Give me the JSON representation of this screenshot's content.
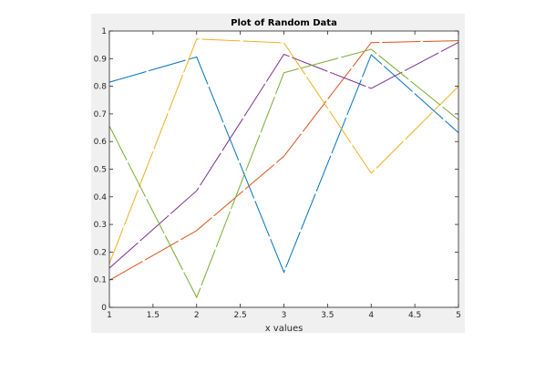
{
  "chart_data": {
    "type": "line",
    "title": "Plot of Random Data",
    "xlabel": "x values",
    "ylabel": "",
    "xlim": [
      1,
      5
    ],
    "ylim": [
      0,
      1
    ],
    "x": [
      1,
      2,
      3,
      4,
      5
    ],
    "x_ticks": [
      "1",
      "1.5",
      "2",
      "2.5",
      "3",
      "3.5",
      "4",
      "4.5",
      "5"
    ],
    "y_ticks": [
      "0",
      "0.1",
      "0.2",
      "0.3",
      "0.4",
      "0.5",
      "0.6",
      "0.7",
      "0.8",
      "0.9",
      "1"
    ],
    "grid": false,
    "series": [
      {
        "color": "#0072BD",
        "values": [
          0.815,
          0.906,
          0.127,
          0.914,
          0.632
        ]
      },
      {
        "color": "#D95319",
        "values": [
          0.098,
          0.278,
          0.547,
          0.958,
          0.965
        ]
      },
      {
        "color": "#EDB120",
        "values": [
          0.158,
          0.971,
          0.957,
          0.485,
          0.8
        ]
      },
      {
        "color": "#7E2F8E",
        "values": [
          0.142,
          0.422,
          0.916,
          0.792,
          0.959
        ]
      },
      {
        "color": "#77AC30",
        "values": [
          0.656,
          0.036,
          0.849,
          0.934,
          0.679
        ]
      }
    ]
  }
}
